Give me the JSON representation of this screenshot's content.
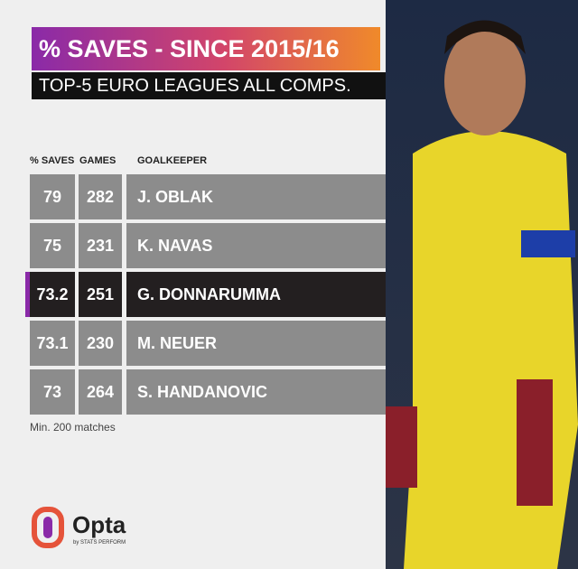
{
  "header": {
    "title": "% SAVES - SINCE 2015/16",
    "subtitle": "TOP-5 EURO LEAGUES ALL COMPS."
  },
  "table": {
    "columns": [
      "% SAVES",
      "GAMES",
      "GOALKEEPER"
    ],
    "rows": [
      [
        79,
        282,
        "J. OBLAK"
      ],
      [
        75,
        231,
        "K. NAVAS"
      ],
      [
        73.2,
        251,
        "G. DONNARUMMA"
      ],
      [
        73.1,
        230,
        "M. NEUER"
      ],
      [
        73,
        264,
        "S. HANDANOVIC"
      ]
    ]
  },
  "footnote": "Min. 200 matches",
  "logo": {
    "name": "Opta",
    "tagline": "by STATS PERFORM"
  }
}
